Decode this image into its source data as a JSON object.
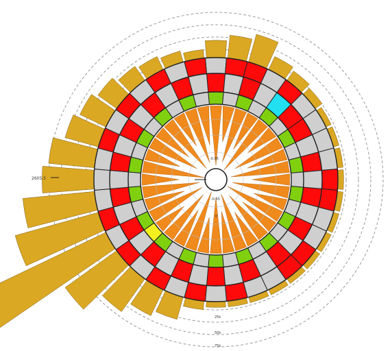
{
  "labels": {
    "left_tick": "2605.5",
    "inner_top": "-0.05",
    "inner_mid": "-0.55",
    "inner_bottom": "0",
    "bottom_1": "25k",
    "bottom_2": "50k",
    "bottom_3": "75k"
  },
  "colors": {
    "red": "#ff0a0a",
    "gray": "#cfcfcf",
    "green": "#80d010",
    "orange": "#f08a1c",
    "gold": "#dba824",
    "cyan": "#22e0f0",
    "yellow": "#f4f020",
    "stroke": "#222222",
    "dashed": "#999999"
  },
  "diagram": {
    "segments": 36,
    "ring_outer": [
      "gray",
      "red",
      "red",
      "gray",
      "red",
      "gray",
      "gray",
      "gray",
      "gray",
      "red",
      "red",
      "gray",
      "gray",
      "red",
      "red",
      "gray",
      "gray",
      "red",
      "gray",
      "red",
      "gray",
      "red",
      "gray",
      "red",
      "gray",
      "red",
      "gray",
      "gray",
      "gray",
      "red",
      "gray",
      "red",
      "gray",
      "red",
      "gray",
      "red"
    ],
    "ring_middle": [
      "red",
      "gray",
      "red",
      "gray",
      "cyan",
      "red",
      "red",
      "gray",
      "red",
      "gray",
      "red",
      "gray",
      "red",
      "gray",
      "red",
      "gray",
      "red",
      "gray",
      "red",
      "gray",
      "red",
      "gray",
      "red",
      "gray",
      "red",
      "gray",
      "red",
      "gray",
      "red",
      "gray",
      "red",
      "gray",
      "red",
      "gray",
      "red",
      "gray"
    ],
    "ring_inner": [
      "green",
      "gray",
      "green",
      "gray",
      "green",
      "gray",
      "green",
      "gray",
      "green",
      "gray",
      "green",
      "gray",
      "green",
      "gray",
      "green",
      "gray",
      "green",
      "gray",
      "green",
      "gray",
      "green",
      "gray",
      "green",
      "yellow",
      "green",
      "gray",
      "green",
      "gray",
      "green",
      "gray",
      "green",
      "gray",
      "green",
      "gray",
      "green",
      "gray"
    ],
    "spike_lengths": [
      0.92,
      0.55,
      0.85,
      0.6,
      0.95,
      0.5,
      0.8,
      0.62,
      0.9,
      0.58,
      0.88,
      0.52,
      0.93,
      0.6,
      0.82,
      0.56,
      0.9,
      0.64,
      0.86,
      0.55,
      0.94,
      0.6,
      0.84,
      0.5,
      0.9,
      0.62,
      0.88,
      0.57,
      0.96,
      0.55,
      0.8,
      0.6,
      0.92,
      0.54,
      0.86,
      0.6
    ],
    "outer_bars": [
      0.06,
      0.08,
      0.1,
      0.05,
      0.04,
      0.03,
      0.02,
      0.02,
      0.02,
      0.02,
      0.02,
      0.02,
      0.02,
      0.02,
      0.02,
      0.02,
      0.02,
      0.02,
      0.02,
      0.03,
      0.08,
      0.1,
      0.14,
      0.22,
      0.55,
      0.3,
      0.25,
      0.18,
      0.16,
      0.12,
      0.1,
      0.08,
      0.06,
      0.05,
      0.04,
      0.03
    ]
  }
}
